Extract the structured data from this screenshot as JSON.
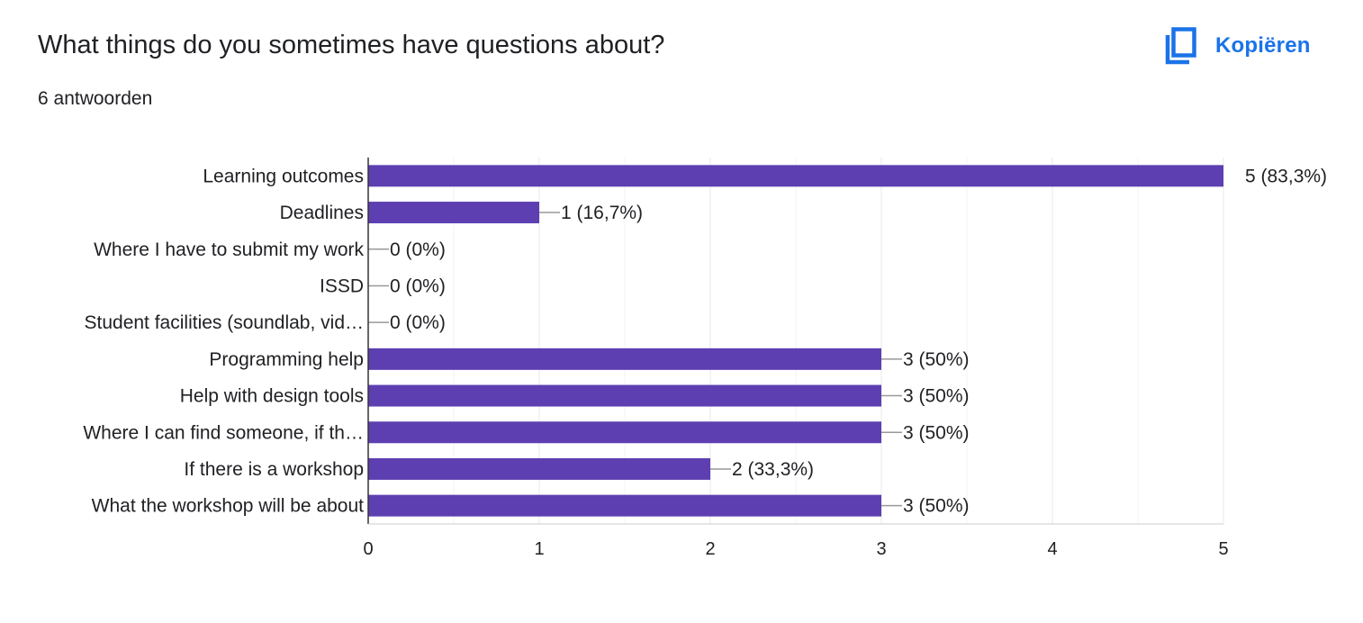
{
  "header": {
    "title": "What things do you sometimes have questions about?",
    "response_count": "6 antwoorden",
    "copy_label": "Kopiëren",
    "copy_icon": "copy-icon",
    "accent_color": "#1a73e8"
  },
  "chart_data": {
    "type": "bar",
    "orientation": "horizontal",
    "bar_color": "#5e3fb1",
    "categories": [
      "Learning outcomes",
      "Deadlines",
      "Where I have to submit my work",
      "ISSD",
      "Student facilities (soundlab, vid…",
      "Programming help",
      "Help with design tools",
      "Where I can find someone, if th…",
      "If there is a workshop",
      "What the workshop will be about"
    ],
    "values": [
      5,
      1,
      0,
      0,
      0,
      3,
      3,
      3,
      2,
      3
    ],
    "value_labels": [
      "5 (83,3%)",
      "1 (16,7%)",
      "0 (0%)",
      "0 (0%)",
      "0 (0%)",
      "3 (50%)",
      "3 (50%)",
      "3 (50%)",
      "2 (33,3%)",
      "3 (50%)"
    ],
    "xlim": [
      0,
      5
    ],
    "xticks": [
      "0",
      "1",
      "2",
      "3",
      "4",
      "5"
    ],
    "grid": true,
    "xlabel": "",
    "ylabel": ""
  }
}
